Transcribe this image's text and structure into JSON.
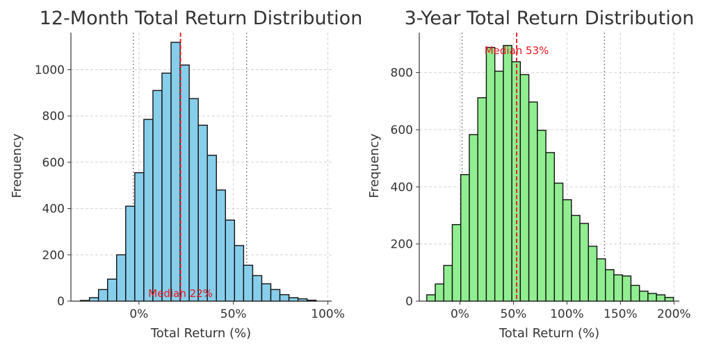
{
  "chart_data": [
    {
      "type": "bar",
      "title": "12-Month Total Return Distribution",
      "xlabel": "Total Return (%)",
      "ylabel": "Frequency",
      "xlim": [
        -0.36,
        1.02
      ],
      "ylim": [
        0,
        1160
      ],
      "x_ticks": [
        0,
        0.5,
        1.0
      ],
      "x_tick_labels": [
        "0%",
        "50%",
        "100%"
      ],
      "y_ticks": [
        0,
        200,
        400,
        600,
        800,
        1000
      ],
      "y_tick_labels": [
        "0",
        "200",
        "400",
        "600",
        "800",
        "1000"
      ],
      "bin_start": -0.31,
      "bin_width": 0.048,
      "series": [
        {
          "values": [
            3,
            15,
            50,
            95,
            200,
            410,
            555,
            785,
            910,
            985,
            1118,
            1020,
            875,
            760,
            630,
            480,
            350,
            240,
            155,
            110,
            75,
            50,
            28,
            15,
            10,
            4
          ]
        }
      ],
      "median": 0.22,
      "median_label": "Median 22%",
      "reference_lines": [
        -0.03,
        0.57
      ],
      "grid": true,
      "bar_color": "#87ceeb",
      "median_color": "#e8141d"
    },
    {
      "type": "bar",
      "title": "3-Year Total Return Distribution",
      "xlabel": "Total Return (%)",
      "ylabel": "Frequency",
      "xlim": [
        -0.38,
        2.05
      ],
      "ylim": [
        0,
        940
      ],
      "x_ticks": [
        0,
        0.5,
        1.0,
        1.5,
        2.0
      ],
      "x_tick_labels": [
        "0%",
        "50%",
        "100%",
        "150%",
        "200%"
      ],
      "y_ticks": [
        0,
        200,
        400,
        600,
        800
      ],
      "y_tick_labels": [
        "0",
        "200",
        "400",
        "600",
        "800"
      ],
      "bin_start": -0.31,
      "bin_width": 0.0795,
      "series": [
        {
          "values": [
            22,
            60,
            125,
            268,
            443,
            583,
            712,
            888,
            805,
            895,
            838,
            793,
            697,
            598,
            520,
            413,
            355,
            300,
            272,
            192,
            148,
            110,
            92,
            88,
            55,
            35,
            27,
            22,
            13
          ]
        }
      ],
      "median": 0.53,
      "median_label": "Median 53%",
      "reference_lines": [
        0.02,
        1.35
      ],
      "grid": true,
      "bar_color": "#90ee90",
      "median_color": "#e8141d"
    }
  ]
}
